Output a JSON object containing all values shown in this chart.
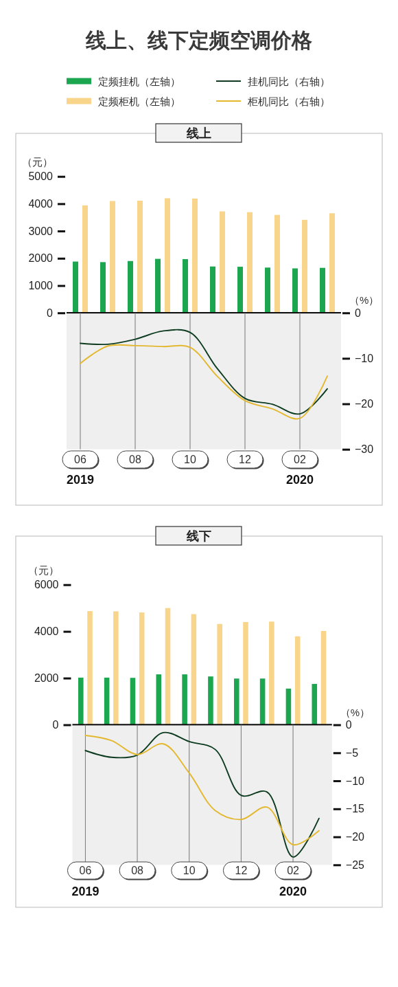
{
  "chart_data": [
    {
      "type": "bar",
      "title": "线上、线下定频空调价格",
      "subtitle": "线上",
      "ylabel": "（元）",
      "categories": [
        "06",
        null,
        "08",
        null,
        "10",
        null,
        "12",
        null,
        "02",
        null
      ],
      "ylim": [
        0,
        5000
      ],
      "yticks": [
        0,
        1000,
        2000,
        3000,
        4000,
        5000
      ],
      "tick_labels": "y",
      "legend": "top",
      "series": [
        {
          "name": "定频挂机（左轴）",
          "color": "#1ba64f",
          "values": [
            1880,
            1860,
            1900,
            1980,
            1970,
            1700,
            1690,
            1660,
            1630,
            1650
          ]
        },
        {
          "name": "定频柜机（左轴）",
          "color": "#f8d58a",
          "values": [
            3940,
            4100,
            4110,
            4200,
            4190,
            3720,
            3690,
            3590,
            3410,
            3650
          ]
        }
      ]
    },
    {
      "type": "line",
      "ylabel": "（%）",
      "categories": [
        "06",
        null,
        "08",
        null,
        "10",
        null,
        "12",
        null,
        "02",
        null
      ],
      "ylim": [
        -30,
        0
      ],
      "yticks": [
        0,
        -10,
        -20,
        -30
      ],
      "grid": "x",
      "legend": "top",
      "series": [
        {
          "name": "挂机同比（右轴）",
          "color": "#0c3b1f",
          "values": [
            -6.7,
            -6.9,
            -5.8,
            -4.0,
            -4.3,
            -12.3,
            -18.8,
            -20.1,
            -22.2,
            -16.7
          ]
        },
        {
          "name": "柜机同比（右轴）",
          "color": "#e3b82f",
          "values": [
            -11.1,
            -7.3,
            -7.2,
            -7.4,
            -7.6,
            -14.0,
            -19.3,
            -21.1,
            -23.2,
            -13.9
          ]
        }
      ],
      "annotations": [
        "2019",
        "2020"
      ]
    },
    {
      "type": "bar",
      "subtitle": "线下",
      "ylabel": "（元）",
      "categories": [
        "06",
        null,
        "08",
        null,
        "10",
        null,
        "12",
        null,
        "02",
        null
      ],
      "ylim": [
        0,
        6000
      ],
      "yticks": [
        0,
        2000,
        4000,
        6000
      ],
      "tick_labels": "y",
      "series": [
        {
          "name": "定频挂机（左轴）",
          "color": "#1ba64f",
          "values": [
            2020,
            2020,
            2010,
            2160,
            2160,
            2070,
            1980,
            1980,
            1550,
            1750
          ]
        },
        {
          "name": "定频柜机（左轴）",
          "color": "#f8d58a",
          "values": [
            4870,
            4860,
            4810,
            5000,
            4740,
            4320,
            4400,
            4420,
            3790,
            4020
          ]
        }
      ]
    },
    {
      "type": "line",
      "ylabel": "（%）",
      "categories": [
        "06",
        null,
        "08",
        null,
        "10",
        null,
        "12",
        null,
        "02",
        null
      ],
      "ylim": [
        -25,
        0
      ],
      "yticks": [
        0,
        -5,
        -10,
        -15,
        -20,
        -25
      ],
      "grid": "x",
      "series": [
        {
          "name": "挂机同比（右轴）",
          "color": "#0c3b1f",
          "values": [
            -4.6,
            -5.8,
            -5.4,
            -1.4,
            -3.0,
            -4.4,
            -12.6,
            -12.0,
            -23.6,
            -16.7
          ]
        },
        {
          "name": "柜机同比（右轴）",
          "color": "#e3b82f",
          "values": [
            -1.9,
            -2.8,
            -5.3,
            -3.4,
            -8.6,
            -15.3,
            -16.9,
            -14.7,
            -21.4,
            -18.9
          ]
        }
      ],
      "annotations": [
        "2019",
        "2020"
      ]
    }
  ]
}
